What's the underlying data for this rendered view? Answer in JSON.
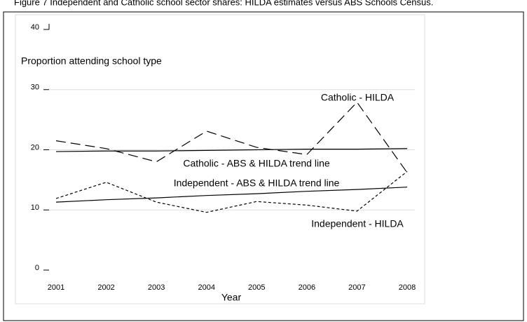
{
  "chart_data": {
    "type": "line",
    "title": "Figure 7 Independent and Catholic school sector shares: HILDA estimates versus ABS Schools Census.",
    "y_label": "Proportion attending school type",
    "x_label": "Year",
    "x": [
      2001,
      2002,
      2003,
      2004,
      2005,
      2006,
      2007,
      2008
    ],
    "xlim": [
      2001,
      2008
    ],
    "xticks": [
      2001,
      2002,
      2003,
      2004,
      2005,
      2006,
      2007,
      2008
    ],
    "ylim": [
      0,
      40
    ],
    "yticks": [
      0,
      10,
      20,
      30,
      40
    ],
    "grid": true,
    "series": [
      {
        "name": "Catholic - HILDA",
        "color": "#000000",
        "dash": "long",
        "values": [
          21.5,
          20.2,
          18.0,
          23.1,
          20.4,
          19.2,
          27.9,
          16.2
        ]
      },
      {
        "name": "Catholic - ABS & HILDA trend line",
        "color": "#000000",
        "dash": "solid",
        "values": [
          19.7,
          19.8,
          19.8,
          19.9,
          20.0,
          20.1,
          20.1,
          20.2
        ]
      },
      {
        "name": "Independent - ABS & HILDA trend line",
        "color": "#000000",
        "dash": "solid",
        "values": [
          11.3,
          11.7,
          12.0,
          12.4,
          12.7,
          13.1,
          13.4,
          13.8
        ]
      },
      {
        "name": "Independent - HILDA",
        "color": "#000000",
        "dash": "short",
        "values": [
          11.9,
          14.6,
          11.3,
          9.6,
          11.4,
          10.8,
          9.8,
          16.4
        ]
      }
    ]
  }
}
